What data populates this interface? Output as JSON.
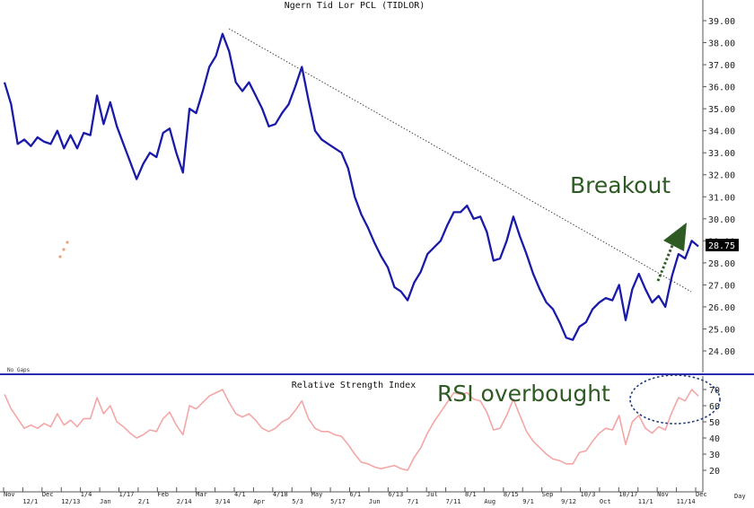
{
  "chart_data": [
    {
      "type": "line",
      "title": "Ngern Tid Lor PCL (TIDLOR)",
      "ylim": [
        23.5,
        39.5
      ],
      "yticks": [
        "24.00",
        "25.00",
        "26.00",
        "27.00",
        "28.00",
        "29.00",
        "30.00",
        "31.00",
        "32.00",
        "33.00",
        "34.00",
        "35.00",
        "36.00",
        "37.00",
        "38.00",
        "39.00"
      ],
      "last_price": "28.75",
      "gaps_label": "No Gaps",
      "series": [
        {
          "color": "#1a1aa8",
          "values": [
            36.2,
            35.2,
            33.4,
            33.6,
            33.3,
            33.7,
            33.5,
            33.4,
            34.0,
            33.2,
            33.8,
            33.2,
            33.9,
            33.8,
            35.6,
            34.3,
            35.3,
            34.2,
            33.4,
            32.6,
            31.8,
            32.5,
            33.0,
            32.8,
            33.9,
            34.1,
            33.0,
            32.1,
            35.0,
            34.8,
            35.8,
            36.9,
            37.4,
            38.4,
            37.6,
            36.2,
            35.8,
            36.2,
            35.6,
            35.0,
            34.2,
            34.3,
            34.8,
            35.2,
            36.0,
            36.9,
            35.4,
            34.0,
            33.6,
            33.4,
            33.2,
            33.0,
            32.3,
            31.0,
            30.2,
            29.6,
            28.9,
            28.3,
            27.8,
            26.9,
            26.7,
            26.3,
            27.1,
            27.6,
            28.4,
            28.7,
            29.0,
            29.7,
            30.3,
            30.3,
            30.6,
            30.0,
            30.1,
            29.4,
            28.1,
            28.2,
            29.0,
            30.1,
            29.2,
            28.4,
            27.5,
            26.8,
            26.2,
            25.9,
            25.3,
            24.6,
            24.5,
            25.1,
            25.3,
            25.9,
            26.2,
            26.4,
            26.3,
            27.0,
            25.4,
            26.8,
            27.5,
            26.8,
            26.2,
            26.5,
            26.0,
            27.4,
            28.4,
            28.2,
            29.0,
            28.75
          ]
        }
      ]
    },
    {
      "type": "line",
      "title": "Relative Strength Index",
      "ylim": [
        15,
        75
      ],
      "yticks": [
        "20",
        "30",
        "40",
        "50",
        "60",
        "70"
      ],
      "series": [
        {
          "color": "#f4a6a6",
          "values": [
            67,
            58,
            52,
            46,
            48,
            46,
            49,
            47,
            55,
            48,
            51,
            47,
            52,
            52,
            65,
            55,
            60,
            50,
            47,
            43,
            40,
            42,
            45,
            44,
            52,
            56,
            48,
            42,
            60,
            58,
            62,
            66,
            68,
            70,
            62,
            55,
            53,
            55,
            51,
            46,
            44,
            46,
            50,
            52,
            57,
            63,
            52,
            46,
            44,
            44,
            42,
            41,
            36,
            30,
            25,
            24,
            22,
            21,
            22,
            23,
            21,
            20,
            28,
            34,
            43,
            50,
            56,
            62,
            68,
            67,
            68,
            64,
            63,
            56,
            45,
            46,
            54,
            64,
            54,
            44,
            38,
            34,
            30,
            27,
            26,
            24,
            24,
            31,
            32,
            38,
            43,
            46,
            45,
            54,
            36,
            50,
            54,
            46,
            43,
            47,
            45,
            56,
            65,
            63,
            70,
            66
          ]
        }
      ]
    }
  ],
  "x_labels": [
    "Nov",
    "12/1",
    "Dec",
    "12/13",
    "1/4",
    "Jan",
    "1/17",
    "2/1",
    "Feb",
    "2/14",
    "Mar",
    "3/14",
    "4/1",
    "Apr",
    "4/18",
    "5/3",
    "May",
    "5/17",
    "6/1",
    "Jun",
    "6/13",
    "7/1",
    "Jul",
    "7/11",
    "8/1",
    "Aug",
    "8/15",
    "9/1",
    "Sep",
    "9/12",
    "10/3",
    "Oct",
    "10/17",
    "11/1",
    "Nov",
    "11/14",
    "Dec"
  ],
  "x_axis_unit": "Day",
  "annotations": {
    "breakout": "Breakout",
    "rsi_overbought": "RSI overbought"
  },
  "colors": {
    "price_line": "#1a1aa8",
    "rsi_line": "#f4a6a6",
    "annotation_text": "#2e5a23",
    "breakout_arrow": "#2e5a23",
    "circle": "#1f3a7a",
    "divider": "#2a2ab0"
  }
}
